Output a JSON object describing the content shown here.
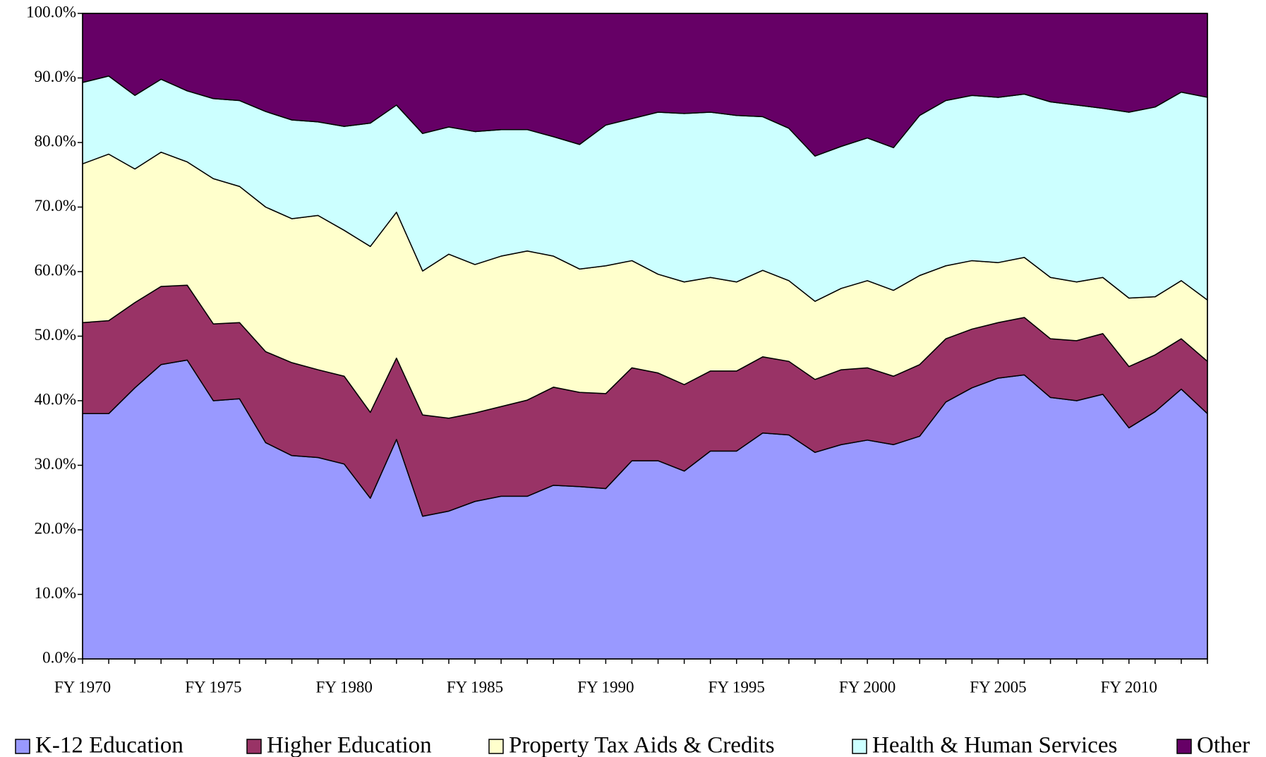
{
  "chart_data": {
    "type": "stacked_area",
    "categories": [
      "FY 1970",
      null,
      null,
      null,
      null,
      "FY 1975",
      null,
      null,
      null,
      null,
      "FY 1980",
      null,
      null,
      null,
      null,
      "FY 1985",
      null,
      null,
      null,
      null,
      "FY 1990",
      null,
      null,
      null,
      null,
      "FY 1995",
      null,
      null,
      null,
      null,
      "FY 2000",
      null,
      null,
      null,
      null,
      "FY 2005",
      null,
      null,
      null,
      null,
      "FY 2010",
      null,
      null,
      null
    ],
    "series": [
      {
        "name": "K-12 Education",
        "color": "#9999ff",
        "values": [
          38.0,
          38.0,
          42.0,
          45.6,
          46.3,
          40.0,
          40.3,
          33.5,
          31.5,
          31.2,
          30.2,
          24.9,
          34.0,
          22.1,
          22.9,
          24.4,
          25.2,
          25.2,
          26.9,
          26.7,
          26.4,
          30.7,
          30.7,
          29.1,
          32.2,
          32.2,
          35.0,
          34.7,
          32.0,
          33.2,
          33.9,
          33.2,
          34.5,
          39.8,
          42.0,
          43.5,
          44.0,
          40.5,
          40.0,
          41.0,
          35.8,
          38.3,
          41.8,
          38.0
        ]
      },
      {
        "name": "Higher Education",
        "color": "#993366",
        "values": [
          14.1,
          14.4,
          13.2,
          12.1,
          11.6,
          11.9,
          11.8,
          14.1,
          14.4,
          13.6,
          13.6,
          13.3,
          12.6,
          15.7,
          14.4,
          13.7,
          13.9,
          14.9,
          15.2,
          14.6,
          14.7,
          14.4,
          13.6,
          13.4,
          12.4,
          12.4,
          11.8,
          11.4,
          11.3,
          11.6,
          11.2,
          10.6,
          11.1,
          9.8,
          9.1,
          8.6,
          8.9,
          9.1,
          9.3,
          9.4,
          9.5,
          8.8,
          7.8,
          8.1
        ]
      },
      {
        "name": "Property Tax Aids & Credits",
        "color": "#ffffcc",
        "values": [
          24.6,
          25.8,
          20.7,
          20.8,
          19.1,
          22.5,
          21.1,
          22.4,
          22.3,
          23.9,
          22.6,
          25.7,
          22.6,
          22.3,
          25.4,
          23.0,
          23.3,
          23.1,
          20.3,
          19.1,
          19.8,
          16.6,
          15.3,
          15.9,
          14.5,
          13.8,
          13.4,
          12.5,
          12.1,
          12.6,
          13.5,
          13.3,
          13.8,
          11.3,
          10.6,
          9.3,
          9.3,
          9.5,
          9.1,
          8.7,
          10.6,
          9.0,
          9.0,
          9.5
        ]
      },
      {
        "name": "Health & Human Services",
        "color": "#ccffff",
        "values": [
          12.6,
          12.1,
          11.4,
          11.3,
          11.0,
          12.4,
          13.3,
          14.8,
          15.3,
          14.5,
          16.1,
          19.1,
          16.6,
          21.3,
          19.7,
          20.6,
          19.6,
          18.8,
          18.5,
          19.3,
          21.8,
          22.0,
          25.1,
          26.1,
          25.6,
          25.8,
          23.8,
          23.6,
          22.5,
          22.0,
          22.1,
          22.1,
          24.8,
          25.6,
          25.6,
          25.6,
          25.3,
          27.2,
          27.4,
          26.2,
          28.8,
          29.4,
          29.2,
          31.4
        ]
      },
      {
        "name": "Other",
        "color": "#660066",
        "values": [
          10.7,
          9.7,
          12.7,
          10.2,
          12.0,
          13.2,
          13.5,
          15.2,
          16.5,
          16.8,
          17.5,
          17.0,
          14.2,
          18.6,
          17.6,
          18.3,
          18.0,
          18.0,
          19.1,
          20.3,
          17.3,
          16.3,
          15.3,
          15.5,
          15.3,
          15.8,
          16.0,
          17.8,
          22.1,
          20.6,
          19.3,
          20.8,
          15.8,
          13.5,
          12.7,
          13.0,
          12.5,
          13.7,
          14.2,
          14.7,
          15.3,
          14.5,
          12.2,
          13.0
        ]
      }
    ],
    "ylim": [
      0,
      100
    ],
    "yticks": [
      {
        "value": 0,
        "label": "0.0%"
      },
      {
        "value": 10,
        "label": "10.0%"
      },
      {
        "value": 20,
        "label": "20.0%"
      },
      {
        "value": 30,
        "label": "30.0%"
      },
      {
        "value": 40,
        "label": "40.0%"
      },
      {
        "value": 50,
        "label": "50.0%"
      },
      {
        "value": 60,
        "label": "60.0%"
      },
      {
        "value": 70,
        "label": "70.0%"
      },
      {
        "value": 80,
        "label": "80.0%"
      },
      {
        "value": 90,
        "label": "90.0%"
      },
      {
        "value": 100,
        "label": "100.0%"
      }
    ],
    "legend": "bottom"
  }
}
